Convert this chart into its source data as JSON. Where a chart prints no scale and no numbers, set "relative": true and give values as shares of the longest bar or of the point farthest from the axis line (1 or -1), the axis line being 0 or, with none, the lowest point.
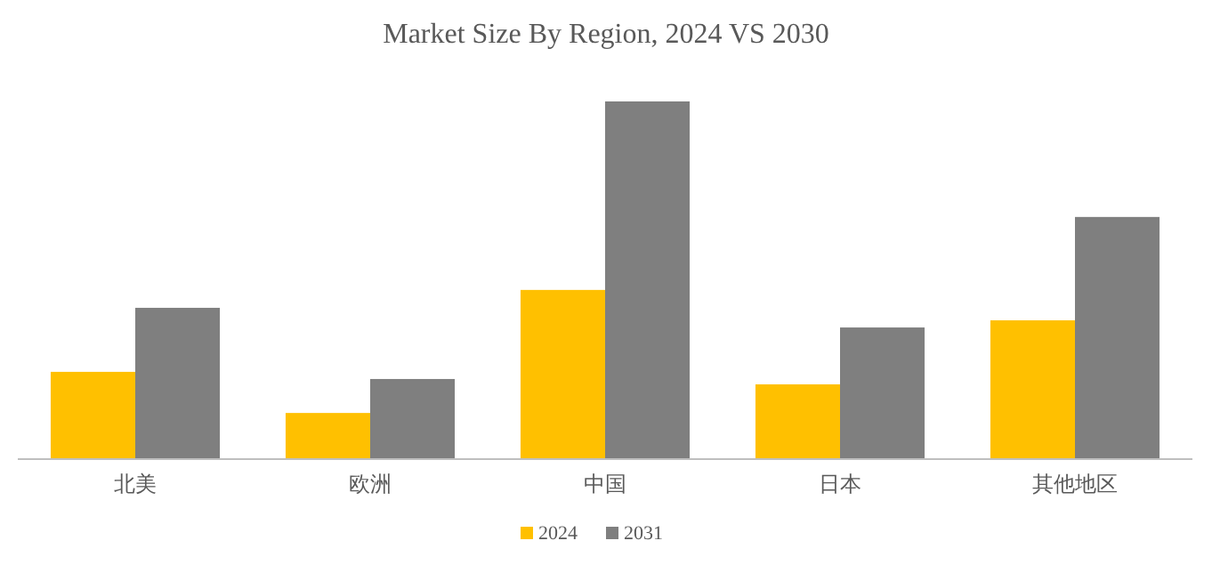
{
  "chart_data": {
    "type": "bar",
    "title": "Market Size By Region, 2024 VS 2030",
    "relative": true,
    "categories": [
      "北美",
      "欧洲",
      "中国",
      "日本",
      "其他地区"
    ],
    "series": [
      {
        "name": "2024",
        "color": "#ffc000",
        "values": [
          0.244,
          0.129,
          0.473,
          0.209,
          0.388
        ]
      },
      {
        "name": "2031",
        "color": "#7f7f7f",
        "values": [
          0.423,
          0.224,
          1,
          0.368,
          0.677
        ]
      }
    ],
    "legend": "bottom",
    "grid": false
  }
}
